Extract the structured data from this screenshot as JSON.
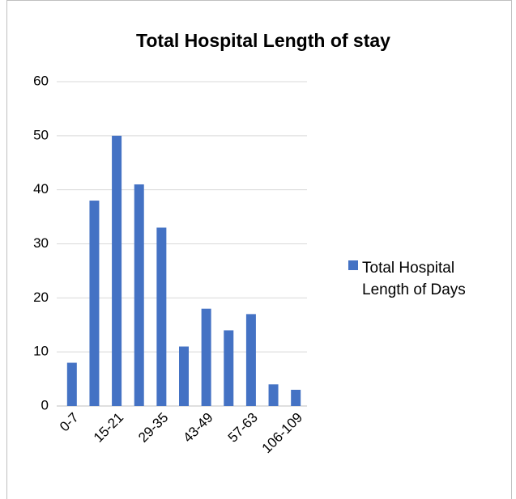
{
  "chart_data": {
    "type": "bar",
    "title": "Total Hospital Length of stay",
    "categories": [
      "0-7",
      null,
      "15-21",
      null,
      "29-35",
      null,
      "43-49",
      null,
      "57-63",
      null,
      "106-109"
    ],
    "series": [
      {
        "name": "Total Hospital Length of Days",
        "color": "#4472c4",
        "values": [
          8,
          38,
          50,
          41,
          33,
          11,
          18,
          14,
          17,
          4,
          3
        ]
      }
    ],
    "ylim": [
      0,
      60
    ],
    "yticks": [
      0,
      10,
      20,
      30,
      40,
      50,
      60
    ],
    "grid": true,
    "legend": "right"
  }
}
